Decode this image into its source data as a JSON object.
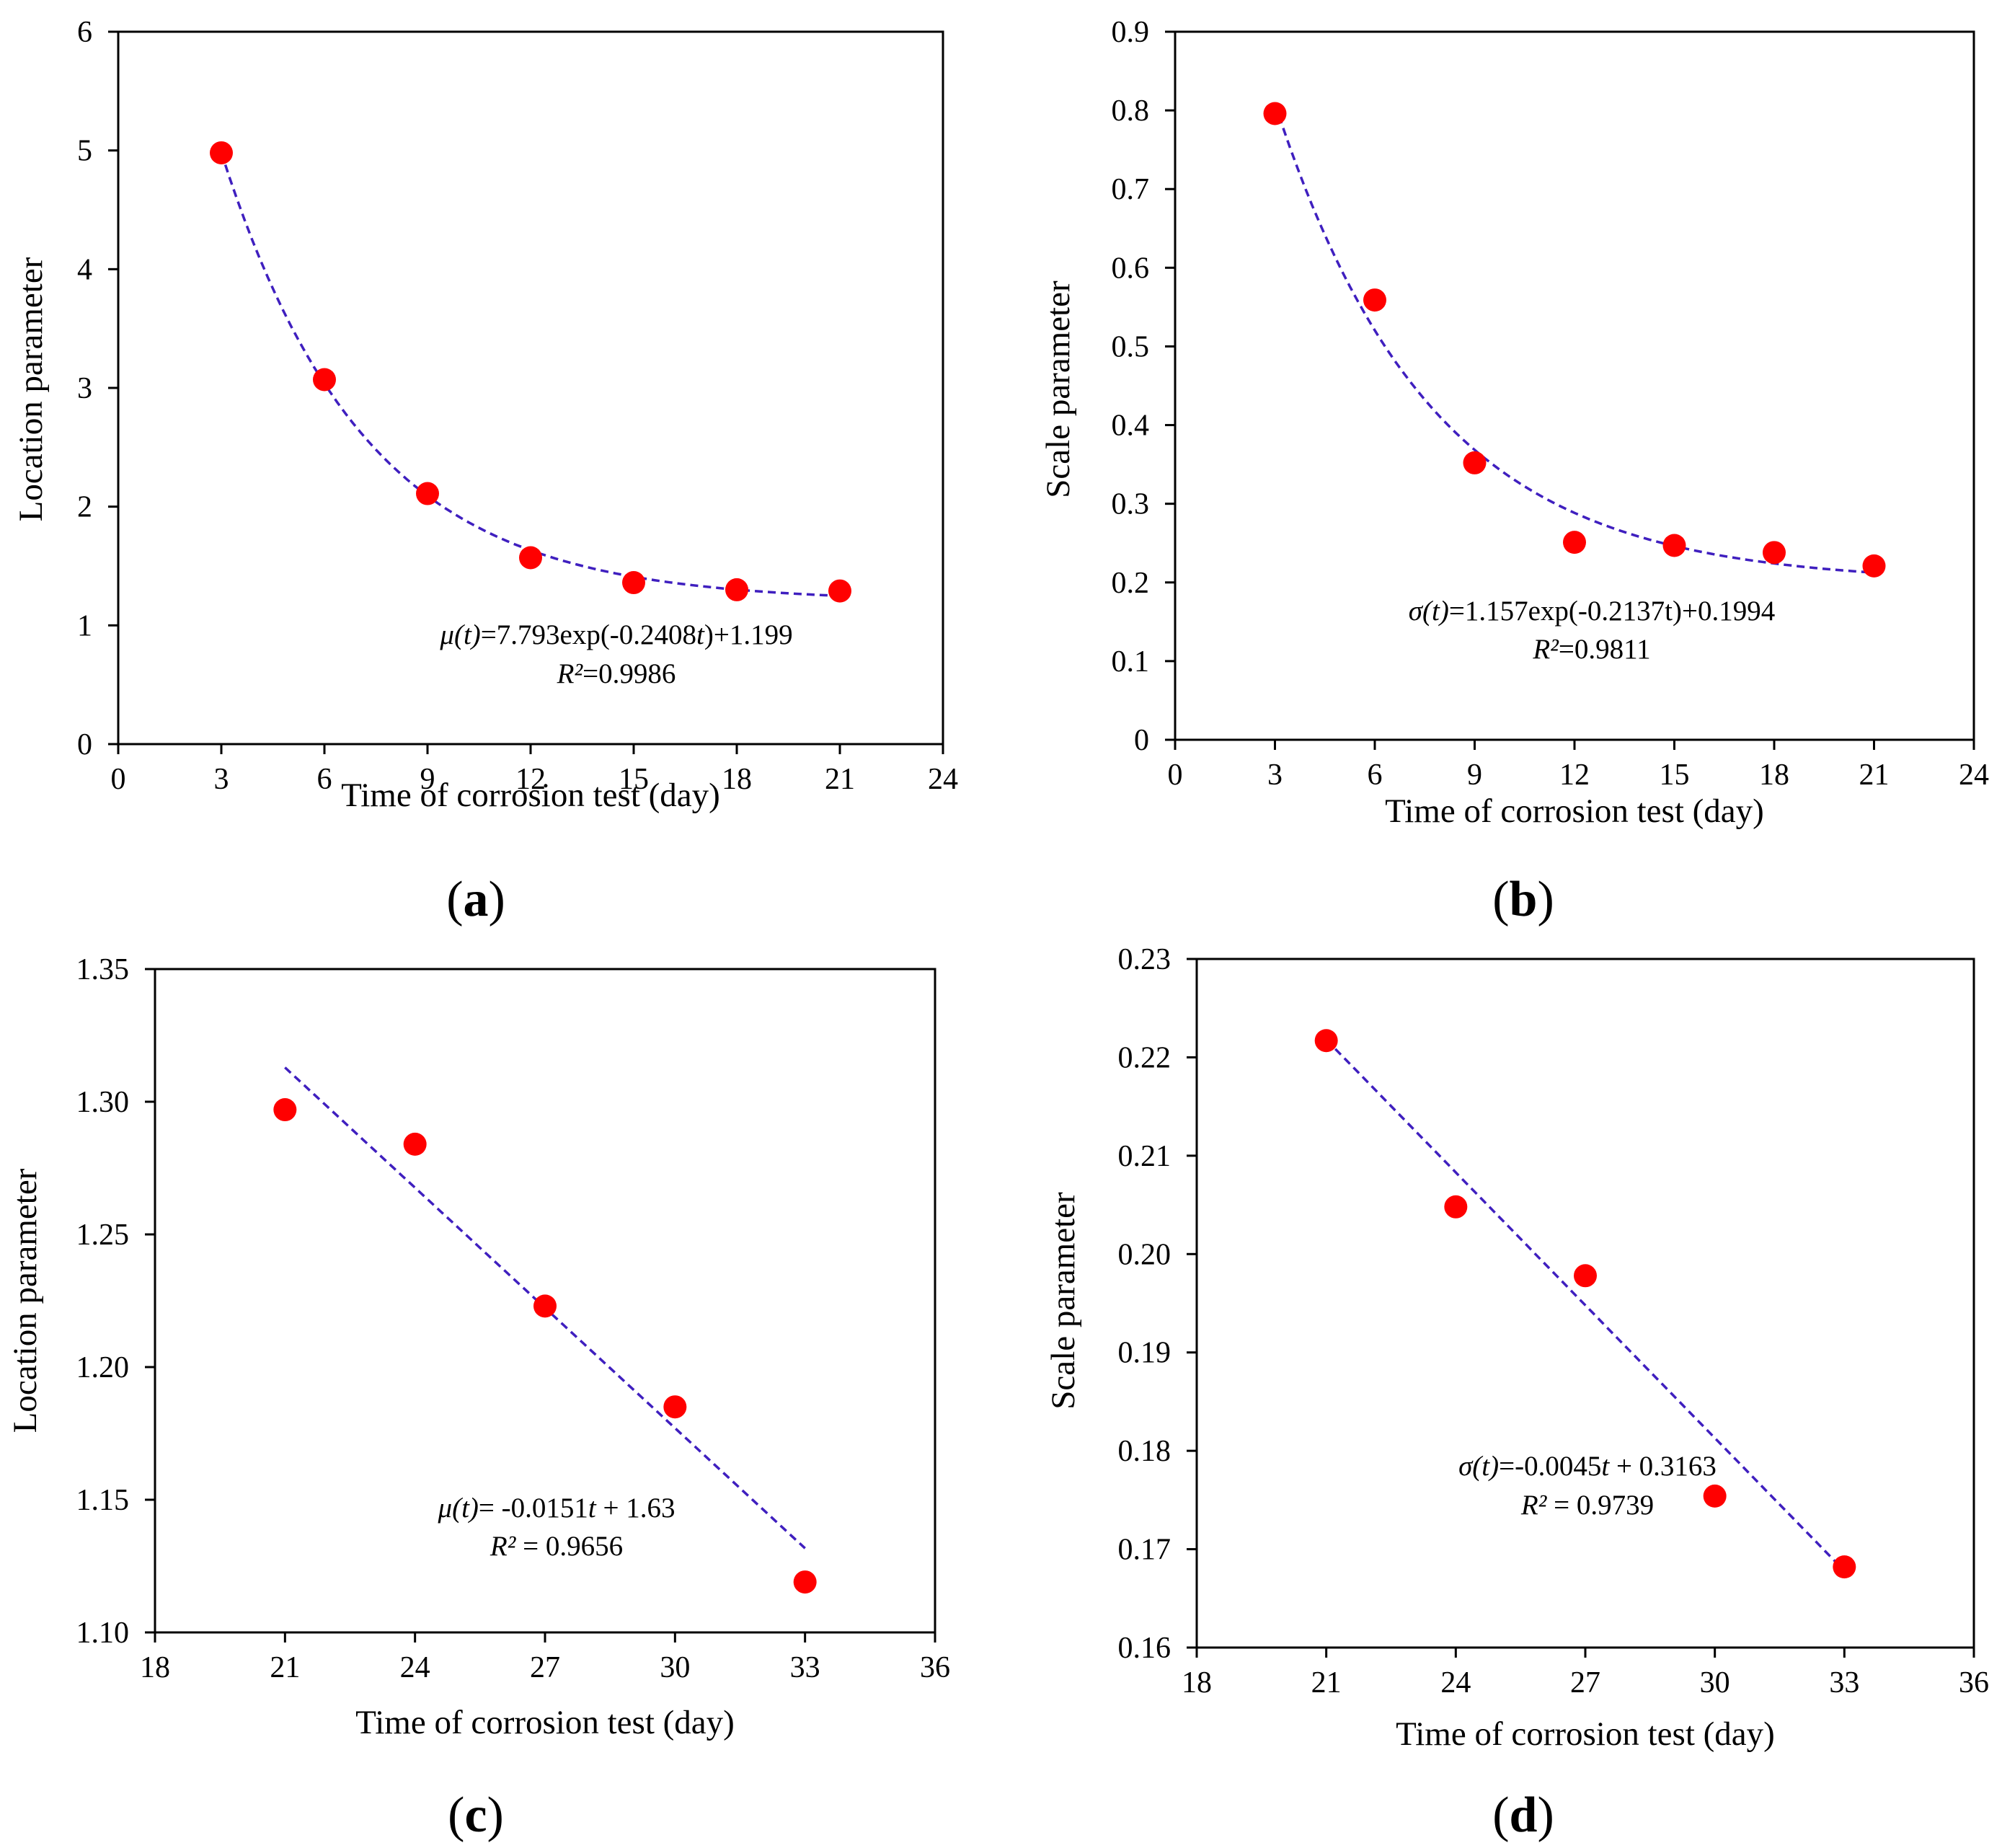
{
  "colors": {
    "marker": "#ff0000",
    "fit_line": "#3f1fbf",
    "axis": "#000000"
  },
  "chart_data": [
    {
      "panel_label": "a",
      "type": "scatter",
      "xlabel": "Time of corrosion test (day)",
      "ylabel": "Location parameter",
      "xlim": [
        0,
        24
      ],
      "ylim": [
        0,
        6
      ],
      "xticks": [
        0,
        3,
        6,
        9,
        12,
        15,
        18,
        21,
        24
      ],
      "yticks": [
        0,
        1,
        2,
        3,
        4,
        5,
        6
      ],
      "xtick_labels": [
        "0",
        "3",
        "6",
        "9",
        "12",
        "15",
        "18",
        "21",
        "24"
      ],
      "ytick_labels": [
        "0",
        "1",
        "2",
        "3",
        "4",
        "5",
        "6"
      ],
      "x": [
        3,
        6,
        9,
        12,
        15,
        18,
        21
      ],
      "y": [
        4.98,
        3.07,
        2.11,
        1.57,
        1.36,
        1.3,
        1.29
      ],
      "fit": {
        "kind": "exp",
        "a": 7.793,
        "b": -0.2408,
        "c": 1.199,
        "x_range": [
          3,
          21
        ]
      },
      "equation_parts": [
        {
          "t": "μ(t)",
          "i": true
        },
        {
          "t": "=7.793exp(-0.2408",
          "i": false
        },
        {
          "t": "t",
          "i": true
        },
        {
          "t": ")+1.199",
          "i": false
        }
      ],
      "r2_parts": [
        {
          "t": "R²",
          "i": true
        },
        {
          "t": "=0.9986",
          "i": false
        }
      ]
    },
    {
      "panel_label": "b",
      "type": "scatter",
      "xlabel": "Time of corrosion test (day)",
      "ylabel": "Scale parameter",
      "xlim": [
        0,
        24
      ],
      "ylim": [
        0,
        0.9
      ],
      "xticks": [
        0,
        3,
        6,
        9,
        12,
        15,
        18,
        21,
        24
      ],
      "yticks": [
        0,
        0.1,
        0.2,
        0.3,
        0.4,
        0.5,
        0.6,
        0.7,
        0.8,
        0.9
      ],
      "xtick_labels": [
        "0",
        "3",
        "6",
        "9",
        "12",
        "15",
        "18",
        "21",
        "24"
      ],
      "ytick_labels": [
        "0",
        "0.1",
        "0.2",
        "0.3",
        "0.4",
        "0.5",
        "0.6",
        "0.7",
        "0.8",
        "0.9"
      ],
      "x": [
        3,
        6,
        9,
        12,
        15,
        18,
        21
      ],
      "y": [
        0.796,
        0.559,
        0.352,
        0.251,
        0.247,
        0.238,
        0.221
      ],
      "fit": {
        "kind": "exp",
        "a": 1.157,
        "b": -0.2137,
        "c": 0.1994,
        "x_range": [
          3,
          21
        ]
      },
      "equation_parts": [
        {
          "t": "σ(t)",
          "i": true
        },
        {
          "t": "=1.157exp(-0.2137t)+0.1994",
          "i": false
        }
      ],
      "r2_parts": [
        {
          "t": "R²",
          "i": true
        },
        {
          "t": "=0.9811",
          "i": false
        }
      ]
    },
    {
      "panel_label": "c",
      "type": "scatter",
      "xlabel": "Time of corrosion test (day)",
      "ylabel": "Location parameter",
      "xlim": [
        18,
        36
      ],
      "ylim": [
        1.1,
        1.35
      ],
      "xticks": [
        18,
        21,
        24,
        27,
        30,
        33,
        36
      ],
      "yticks": [
        1.1,
        1.15,
        1.2,
        1.25,
        1.3,
        1.35
      ],
      "xtick_labels": [
        "18",
        "21",
        "24",
        "27",
        "30",
        "33",
        "36"
      ],
      "ytick_labels": [
        "1.10",
        "1.15",
        "1.20",
        "1.25",
        "1.30",
        "1.35"
      ],
      "x": [
        21,
        24,
        27,
        30,
        33
      ],
      "y": [
        1.297,
        1.284,
        1.223,
        1.185,
        1.119
      ],
      "fit": {
        "kind": "linear",
        "m": -0.0151,
        "b": 1.63,
        "x_range": [
          21,
          33
        ]
      },
      "equation_parts": [
        {
          "t": "μ(t)",
          "i": true
        },
        {
          "t": "= -0.0151",
          "i": false
        },
        {
          "t": "t",
          "i": true
        },
        {
          "t": " + 1.63",
          "i": false
        }
      ],
      "r2_parts": [
        {
          "t": "R²",
          "i": true
        },
        {
          "t": " = 0.9656",
          "i": false
        }
      ]
    },
    {
      "panel_label": "d",
      "type": "scatter",
      "xlabel": "Time of corrosion test (day)",
      "ylabel": "Scale parameter",
      "xlim": [
        18,
        36
      ],
      "ylim": [
        0.16,
        0.23
      ],
      "xticks": [
        18,
        21,
        24,
        27,
        30,
        33,
        36
      ],
      "yticks": [
        0.16,
        0.17,
        0.18,
        0.19,
        0.2,
        0.21,
        0.22,
        0.23
      ],
      "xtick_labels": [
        "18",
        "21",
        "24",
        "27",
        "30",
        "33",
        "36"
      ],
      "ytick_labels": [
        "0.16",
        "0.17",
        "0.18",
        "0.19",
        "0.20",
        "0.21",
        "0.22",
        "0.23"
      ],
      "x": [
        21,
        24,
        27,
        30,
        33
      ],
      "y": [
        0.2217,
        0.2048,
        0.1978,
        0.1754,
        0.1682
      ],
      "fit": {
        "kind": "linear",
        "m": -0.0045,
        "b": 0.3163,
        "x_range": [
          21,
          33
        ]
      },
      "equation_parts": [
        {
          "t": "σ(t)",
          "i": true
        },
        {
          "t": "=-0.0045",
          "i": false
        },
        {
          "t": "t",
          "i": true
        },
        {
          "t": " + 0.3163",
          "i": false
        }
      ],
      "r2_parts": [
        {
          "t": "R²",
          "i": true
        },
        {
          "t": " = 0.9739",
          "i": false
        }
      ]
    }
  ]
}
